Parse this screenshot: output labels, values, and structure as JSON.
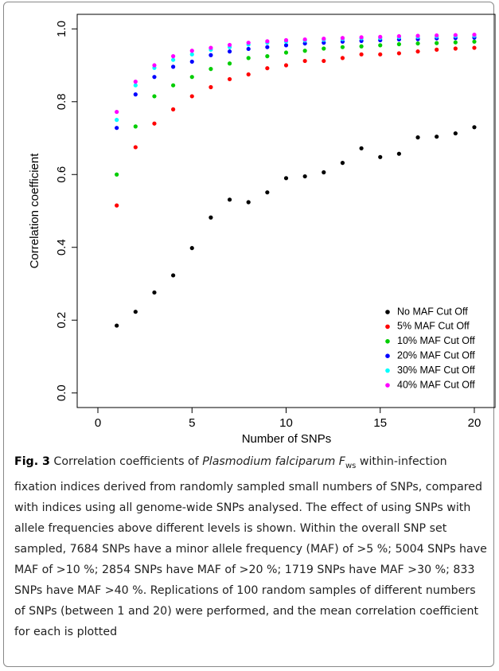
{
  "chart_data": {
    "type": "scatter",
    "xlabel": "Number of SNPs",
    "ylabel": "Correlation coefficient",
    "x": [
      1,
      2,
      3,
      4,
      5,
      6,
      7,
      8,
      9,
      10,
      11,
      12,
      13,
      14,
      15,
      16,
      17,
      18,
      19,
      20
    ],
    "series": [
      {
        "name": "No MAF Cut Off",
        "color": "#000000",
        "values": [
          0.185,
          0.223,
          0.276,
          0.323,
          0.398,
          0.482,
          0.531,
          0.524,
          0.551,
          0.59,
          0.595,
          0.606,
          0.632,
          0.672,
          0.648,
          0.657,
          0.702,
          0.704,
          0.713,
          0.73
        ]
      },
      {
        "name": "5% MAF Cut Off",
        "color": "#ff0000",
        "values": [
          0.515,
          0.675,
          0.74,
          0.779,
          0.815,
          0.84,
          0.862,
          0.875,
          0.892,
          0.9,
          0.912,
          0.912,
          0.92,
          0.93,
          0.93,
          0.933,
          0.938,
          0.943,
          0.946,
          0.948
        ]
      },
      {
        "name": "10% MAF Cut Off",
        "color": "#00cd00",
        "values": [
          0.6,
          0.732,
          0.815,
          0.845,
          0.868,
          0.89,
          0.905,
          0.92,
          0.925,
          0.935,
          0.94,
          0.946,
          0.95,
          0.952,
          0.955,
          0.958,
          0.96,
          0.961,
          0.963,
          0.965
        ]
      },
      {
        "name": "20% MAF Cut Off",
        "color": "#0000ff",
        "values": [
          0.728,
          0.82,
          0.868,
          0.896,
          0.91,
          0.928,
          0.938,
          0.945,
          0.95,
          0.955,
          0.96,
          0.962,
          0.965,
          0.967,
          0.969,
          0.971,
          0.972,
          0.974,
          0.975,
          0.976
        ]
      },
      {
        "name": "30% MAF Cut Off",
        "color": "#00ffff",
        "values": [
          0.75,
          0.845,
          0.893,
          0.915,
          0.93,
          0.943,
          0.95,
          0.957,
          0.962,
          0.965,
          0.968,
          0.97,
          0.972,
          0.974,
          0.975,
          0.977,
          0.978,
          0.979,
          0.98,
          0.981
        ]
      },
      {
        "name": "40% MAF Cut Off",
        "color": "#ff00ff",
        "values": [
          0.772,
          0.855,
          0.9,
          0.925,
          0.94,
          0.948,
          0.956,
          0.962,
          0.966,
          0.969,
          0.971,
          0.973,
          0.975,
          0.977,
          0.978,
          0.98,
          0.981,
          0.982,
          0.983,
          0.984
        ]
      }
    ],
    "xlim": [
      -1.1,
      21.1
    ],
    "xticks": [
      0,
      5,
      10,
      15,
      20
    ],
    "ylim": [
      -0.04,
      1.04
    ],
    "yticks": [
      {
        "value": 0,
        "label": "0.0"
      },
      0.2,
      0.4,
      0.6,
      0.8,
      {
        "value": 1,
        "label": "1.0"
      }
    ],
    "legend": "lower right"
  },
  "caption": [
    "Fig. 3",
    " Correlation coefficients of ",
    "Plasmodium falciparum F",
    "ws",
    " within-infection fixation indices derived from randomly sampled small numbers of SNPs, compared with indices using all genome-wide SNPs analysed. The effect of using SNPs with allele frequencies above different levels is shown. Within the overall SNP set sampled, 7684 SNPs have a minor allele frequency (MAF) of >5 %; 5004 SNPs have MAF of >10 %; 2854 SNPs have MAF of >20 %; 1719 SNPs have MAF >30 %; 833 SNPs have MAF >40 %. Replications of 100 random samples of different numbers of SNPs (between 1 and 20) were performed, and the mean correlation coefficient for each is plotted"
  ]
}
